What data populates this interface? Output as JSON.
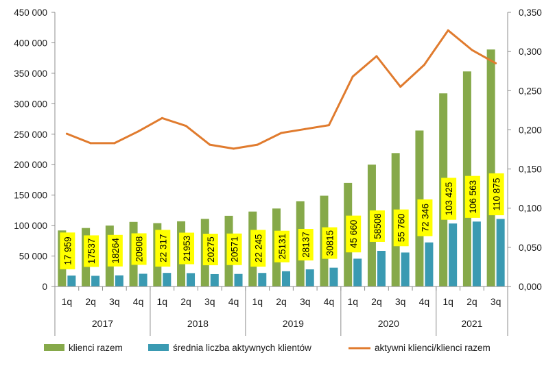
{
  "colors": {
    "bar_total": "#86A94A",
    "bar_active": "#3A9AB2",
    "line_ratio": "#E07B2E",
    "label_bg": "#FFFF00",
    "axis": "#8C8C8C",
    "border": "#8C8C8C"
  },
  "chart_data": {
    "type": "bar",
    "title": "",
    "categories": [
      "1q",
      "2q",
      "3q",
      "4q",
      "1q",
      "2q",
      "3q",
      "4q",
      "1q",
      "2q",
      "3q",
      "4q",
      "1q",
      "2q",
      "3q",
      "4q",
      "1q",
      "2q",
      "3q"
    ],
    "years": [
      {
        "label": "2017",
        "quarters": 4
      },
      {
        "label": "2018",
        "quarters": 4
      },
      {
        "label": "2019",
        "quarters": 4
      },
      {
        "label": "2020",
        "quarters": 4
      },
      {
        "label": "2021",
        "quarters": 3
      }
    ],
    "y_left": {
      "min": 0,
      "max": 450000,
      "step": 50000,
      "ticks": [
        "0",
        "50 000",
        "100 000",
        "150 000",
        "200 000",
        "250 000",
        "300 000",
        "350 000",
        "400 000",
        "450 000"
      ]
    },
    "y_right": {
      "min": 0,
      "max": 0.35,
      "step": 0.05,
      "ticks": [
        "0,000",
        "0,050",
        "0,100",
        "0,150",
        "0,200",
        "0,250",
        "0,300",
        "0,350"
      ]
    },
    "series": [
      {
        "name": "klienci razem",
        "kind": "bar",
        "axis": "left",
        "values": [
          92000,
          96000,
          100000,
          106000,
          104000,
          107000,
          111000,
          116000,
          123000,
          128000,
          140000,
          149000,
          170000,
          200000,
          219000,
          256000,
          317000,
          353000,
          389000
        ]
      },
      {
        "name": "średnia liczba aktywnych klientów",
        "kind": "bar",
        "axis": "left",
        "values": [
          17959,
          17537,
          18264,
          20908,
          22317,
          21953,
          20275,
          20571,
          22245,
          25131,
          28137,
          30815,
          45660,
          58508,
          55760,
          72346,
          103425,
          106563,
          110875
        ],
        "labels": [
          "17 959",
          "17537",
          "18264",
          "20908",
          "22 317",
          "21953",
          "20275",
          "20571",
          "22 245",
          "25131",
          "28137",
          "30815",
          "45 660",
          "58508",
          "55 760",
          "72 346",
          "103 425",
          "106 563",
          "110 875"
        ]
      },
      {
        "name": "aktywni klienci/klienci razem",
        "kind": "line",
        "axis": "right",
        "values": [
          0.195,
          0.183,
          0.183,
          0.198,
          0.215,
          0.205,
          0.181,
          0.176,
          0.181,
          0.196,
          0.201,
          0.206,
          0.268,
          0.294,
          0.255,
          0.283,
          0.327,
          0.302,
          0.285
        ]
      }
    ],
    "legend": {
      "position": "bottom"
    },
    "grid": false
  }
}
